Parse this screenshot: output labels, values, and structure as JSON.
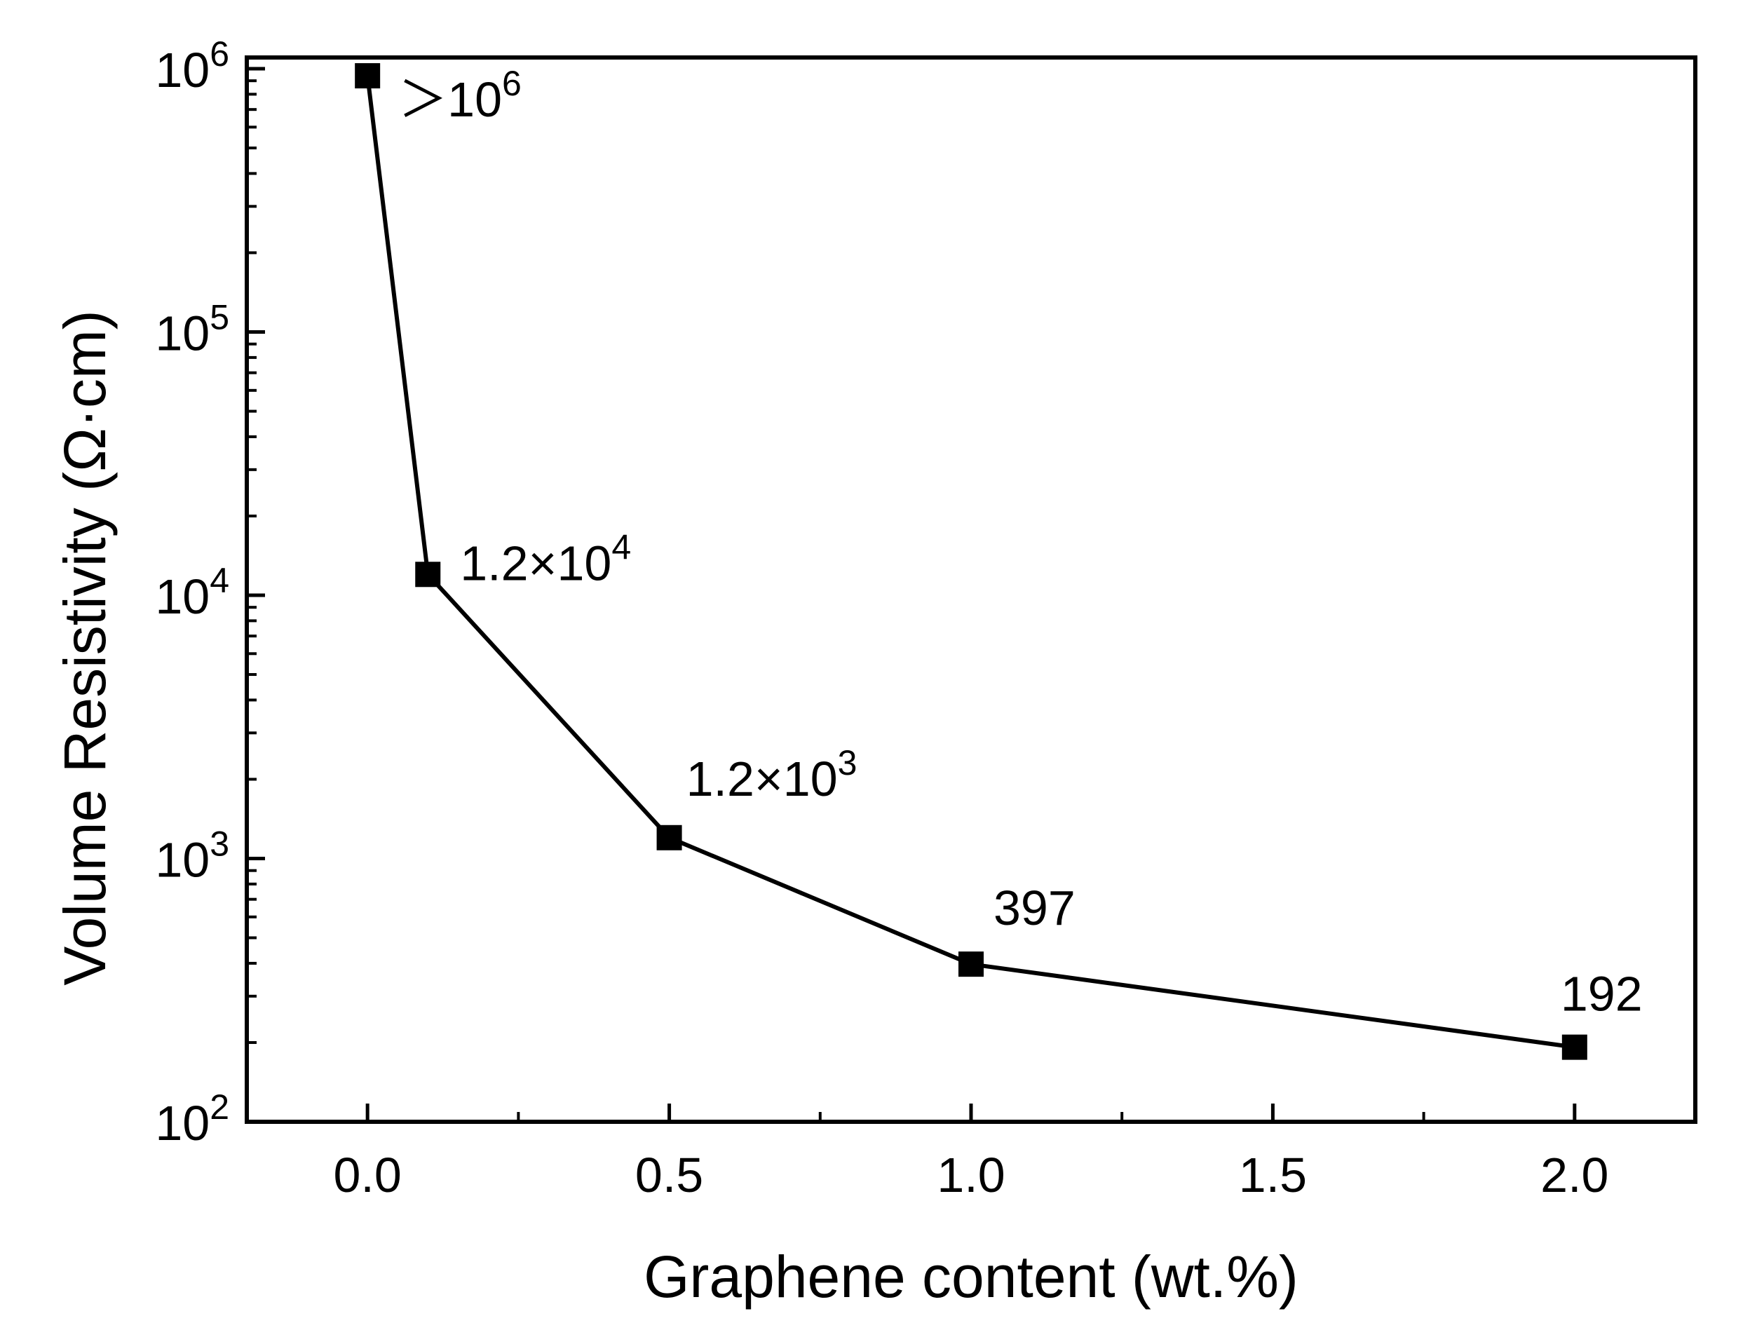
{
  "chart_data": {
    "type": "line",
    "xlabel": "Graphene content (wt.%)",
    "ylabel": "Volume Resistivity (Ω·cm)",
    "xlim": [
      -0.2,
      2.2
    ],
    "ylim": [
      100,
      1000000
    ],
    "yscale": "log",
    "x_ticks": [
      {
        "value": 0.0,
        "label": "0.0"
      },
      {
        "value": 0.5,
        "label": "0.5"
      },
      {
        "value": 1.0,
        "label": "1.0"
      },
      {
        "value": 1.5,
        "label": "1.5"
      },
      {
        "value": 2.0,
        "label": "2.0"
      }
    ],
    "x_minor_ticks": [
      0.25,
      0.75,
      1.25,
      1.75
    ],
    "y_ticks": [
      {
        "value": 100,
        "base": "10",
        "exp": "2"
      },
      {
        "value": 1000,
        "base": "10",
        "exp": "3"
      },
      {
        "value": 10000,
        "base": "10",
        "exp": "4"
      },
      {
        "value": 100000,
        "base": "10",
        "exp": "5"
      },
      {
        "value": 1000000,
        "base": "10",
        "exp": "6"
      }
    ],
    "grid": false,
    "marker": "square",
    "line_color": "#000000",
    "series": [
      {
        "x": [
          0.0,
          0.1,
          0.5,
          1.0,
          2.0
        ],
        "y": [
          940000,
          12000,
          1200,
          397,
          192
        ]
      }
    ],
    "annotations": [
      {
        "x": 0.0,
        "y": 940000,
        "prefix": "＞10",
        "sup": "6"
      },
      {
        "x": 0.1,
        "y": 12000,
        "prefix": "1.2×10",
        "sup": "4"
      },
      {
        "x": 0.5,
        "y": 1200,
        "prefix": "1.2×10",
        "sup": "3"
      },
      {
        "x": 1.0,
        "y": 397,
        "prefix": "397",
        "sup": ""
      },
      {
        "x": 2.0,
        "y": 192,
        "prefix": "192",
        "sup": ""
      }
    ]
  }
}
